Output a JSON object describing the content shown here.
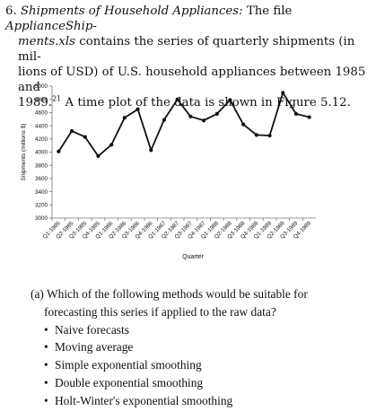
{
  "problem": {
    "number": "6.",
    "title": "Shipments of Household Appliances:",
    "text_the_file": "The file",
    "file_name_a": "ApplianceShip-",
    "file_name_b": "ments.xls",
    "text_1": "contains the series of quarterly shipments (in mil-",
    "text_2": "lions of USD) of U.S. household appliances between 1985 and",
    "text_3a": "1989.",
    "footnote": "21",
    "text_3b": "A time plot of the data is shown in Figure 5.12."
  },
  "chart_data": {
    "type": "line",
    "title": "",
    "xlabel": "Quarter",
    "ylabel": "Shipments (millions $)",
    "ylim": [
      3000,
      5000
    ],
    "y_ticks": [
      "3000",
      "3200",
      "3400",
      "3600",
      "3800",
      "4000",
      "4200",
      "4400",
      "4600",
      "4800",
      "5000"
    ],
    "categories": [
      "Q1-1985",
      "Q2-1985",
      "Q3-1985",
      "Q4-1985",
      "Q1-1986",
      "Q2-1986",
      "Q3-1986",
      "Q4-1986",
      "Q1-1987",
      "Q2-1987",
      "Q3-1987",
      "Q4-1987",
      "Q1-1988",
      "Q2-1988",
      "Q3-1988",
      "Q4-1988",
      "Q1-1989",
      "Q2-1989",
      "Q3-1989",
      "Q4-1989"
    ],
    "values": [
      4010,
      4320,
      4230,
      3940,
      4110,
      4520,
      4650,
      4030,
      4490,
      4800,
      4540,
      4480,
      4580,
      4790,
      4420,
      4260,
      4250,
      4900,
      4580,
      4530
    ],
    "grid": false,
    "line_color": "#111111"
  },
  "question": {
    "label": "(a)",
    "line1": "Which of the following methods would be suitable for",
    "line2": "forecasting this series if applied to the raw data?",
    "options": [
      "Naive forecasts",
      "Moving average",
      "Simple exponential smoothing",
      "Double exponential smoothing",
      "Holt-Winter's exponential smoothing"
    ]
  }
}
